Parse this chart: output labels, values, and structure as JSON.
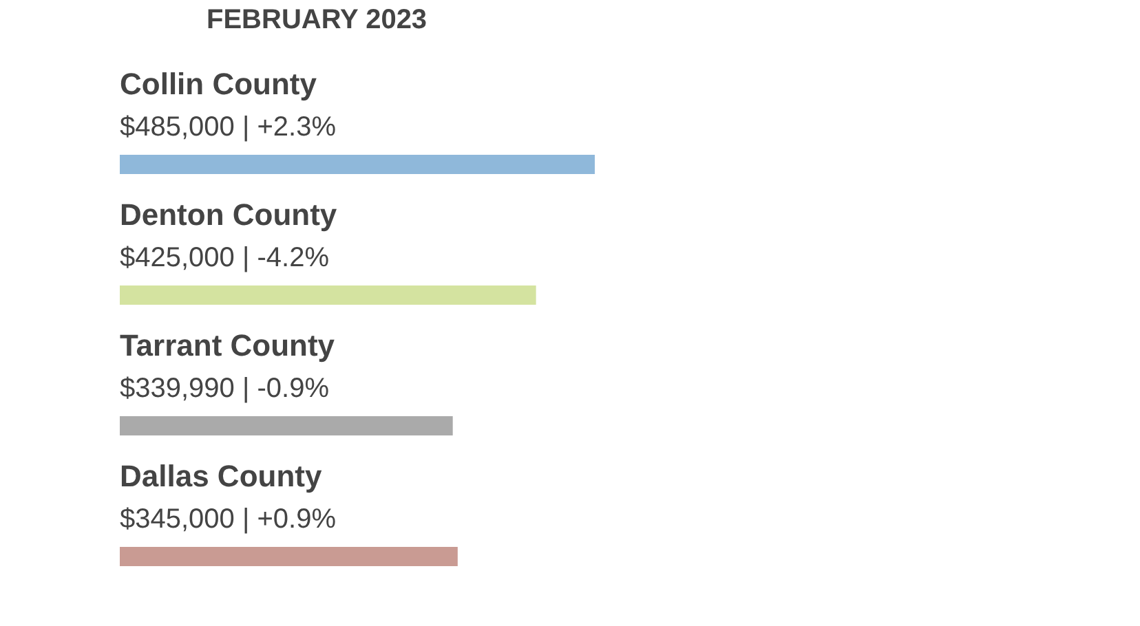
{
  "chart_data": {
    "type": "bar",
    "orientation": "horizontal",
    "title": "FEBRUARY 2023",
    "categories": [
      "Collin County",
      "Denton County",
      "Tarrant County",
      "Dallas County"
    ],
    "values": [
      485000,
      425000,
      339990,
      345000
    ],
    "value_labels": [
      "$485,000 | +2.3%",
      "$425,000 | -4.2%",
      "$339,990 | -0.9%",
      "$345,000 | +0.9%"
    ],
    "colors": [
      "#8fb8da",
      "#d4e3a0",
      "#aaaaaa",
      "#c99b93"
    ],
    "tick_labels": false,
    "legend": false
  }
}
